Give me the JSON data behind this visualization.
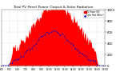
{
  "title": "Total PV Panel Power Output & Solar Radiation",
  "bg_color": "#ffffff",
  "grid_color": "#bbbbbb",
  "area_color": "#ff0000",
  "line_color": "#0000cc",
  "legend_pv": "PV Power (W)",
  "legend_rad": "Solar Rad (W/m²)",
  "n_points": 144,
  "pv_peak": 1.0,
  "rad_peak": 0.6,
  "xlim": [
    0,
    143
  ],
  "ylim": [
    0,
    1.0
  ],
  "ytick_vals": [
    0.0,
    0.2,
    0.4,
    0.6,
    0.8,
    1.0
  ],
  "ytick_labels": [
    "0",
    "200",
    "400",
    "600",
    "800",
    "1000"
  ]
}
